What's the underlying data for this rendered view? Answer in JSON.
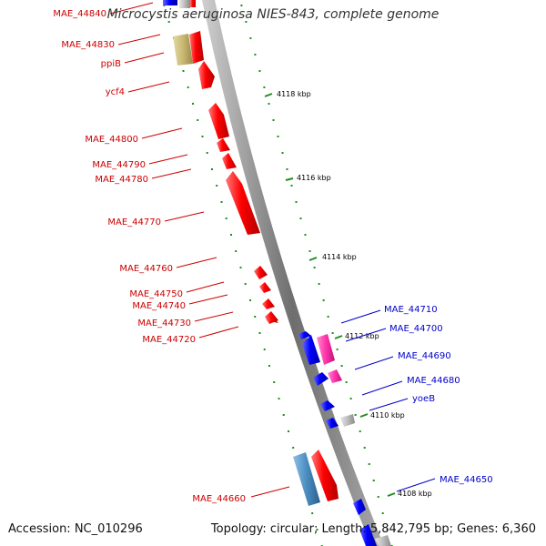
{
  "title": "Microcystis aeruginosa NIES-843, complete genome",
  "footer": {
    "accession": "Accession: NC_010296",
    "summary": "Topology: circular; Length: 5,842,795 bp; Genes: 6,360"
  },
  "colors": {
    "backbone": "#808080",
    "forward_gene": "#ff0000",
    "reverse_gene": "#0000ff",
    "forward_label": "#cc0000",
    "reverse_label": "#0000cc",
    "tick": "#228b22",
    "pink_feature": "#ff33aa",
    "olive_feature": "#c8b872",
    "steelblue_feature": "#4a8cc0",
    "grey_feature": "#666666"
  },
  "kbp_labels": [
    "4118 kbp",
    "4116 kbp",
    "4114 kbp",
    "4112 kbp",
    "4110 kbp",
    "4108 kbp"
  ],
  "left_labels": [
    "MAE_44840",
    "MAE_44830",
    "ppiB",
    "ycf4",
    "MAE_44800",
    "MAE_44790",
    "MAE_44780",
    "MAE_44770",
    "MAE_44760",
    "MAE_44750",
    "MAE_44740",
    "MAE_44730",
    "MAE_44720",
    "MAE_44660"
  ],
  "right_labels": [
    "MAE_44710",
    "MAE_44700",
    "MAE_44690",
    "MAE_44680",
    "yoeB",
    "MAE_44650"
  ]
}
